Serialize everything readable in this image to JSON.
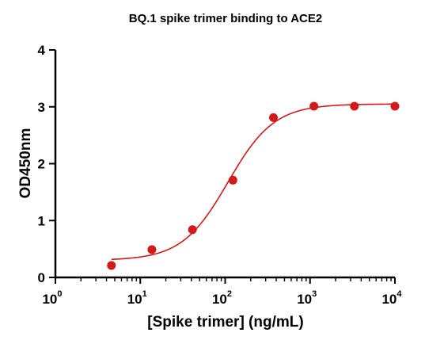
{
  "chart_data": {
    "type": "scatter",
    "title": "BQ.1 spike trimer binding to ACE2",
    "xlabel": "[Spike trimer] (ng/mL)",
    "ylabel": "OD450nm",
    "x_scale": "log",
    "xlim": [
      1,
      10000
    ],
    "ylim": [
      0,
      4
    ],
    "x_ticks": [
      {
        "base": "10",
        "exp": "0",
        "value": 1
      },
      {
        "base": "10",
        "exp": "1",
        "value": 10
      },
      {
        "base": "10",
        "exp": "2",
        "value": 100
      },
      {
        "base": "10",
        "exp": "3",
        "value": 1000
      },
      {
        "base": "10",
        "exp": "4",
        "value": 10000
      }
    ],
    "y_ticks": [
      "0",
      "1",
      "2",
      "3",
      "4"
    ],
    "grid": false,
    "series": [
      {
        "color": "#d11a1a",
        "x": [
          4.57,
          13.7,
          41.2,
          123.5,
          370.4,
          1111,
          3333,
          10000
        ],
        "y": [
          0.21,
          0.49,
          0.84,
          1.71,
          2.81,
          3.01,
          3.01,
          3.01
        ],
        "fit": {
          "model": "4PL",
          "bottom": 0.3,
          "top": 3.05,
          "ec50": 108,
          "hill": 1.6,
          "x_range": [
            4.57,
            10000
          ]
        }
      }
    ]
  }
}
